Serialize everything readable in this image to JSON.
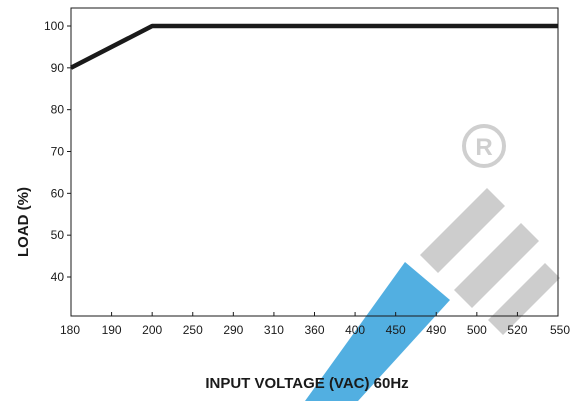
{
  "chart_data": {
    "type": "line",
    "title": "",
    "xlabel": "INPUT VOLTAGE (VAC) 60Hz",
    "ylabel": "LOAD (%)",
    "x_ticks": [
      "180",
      "190",
      "200",
      "250",
      "290",
      "310",
      "360",
      "400",
      "450",
      "490",
      "500",
      "520",
      "550"
    ],
    "y_ticks": [
      40,
      50,
      60,
      70,
      80,
      90,
      100
    ],
    "ylim": [
      30,
      105
    ],
    "x_scale": "categorical-equal-spacing",
    "grid": false,
    "legend": "none",
    "series": [
      {
        "x": [
          "180",
          "200",
          "550"
        ],
        "y": [
          90,
          100,
          100
        ],
        "color": "#1a1a1a"
      }
    ]
  },
  "watermark": {
    "description_colors": {
      "gray": "#c8c8c8",
      "blue": "#3fa6de"
    }
  }
}
